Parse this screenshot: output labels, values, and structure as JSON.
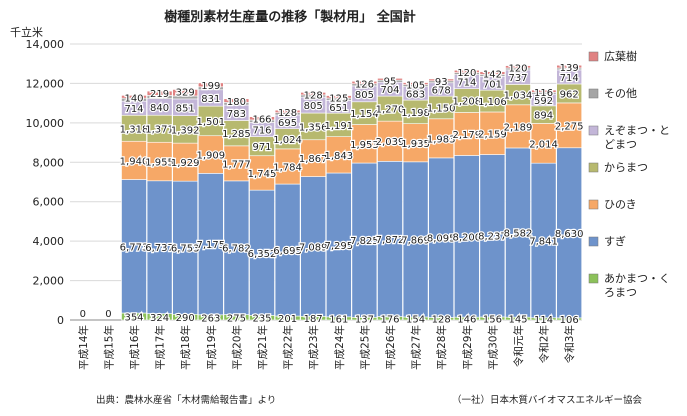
{
  "title": "樹種別素材生産量の推移「製材用」 全国計",
  "unit": "千立米",
  "source_left": "出典：農林水産省「木材需給報告書」より",
  "source_right": "（一社）日本木質バイオマスエネルギー協会",
  "colors": {
    "akamatsu": "#8cc15a",
    "sugi": "#6e93cb",
    "hinoki": "#f6a867",
    "karamatsu": "#b7b96f",
    "ezomatsu": "#c3b6d8",
    "sonota": "#a5a5a5",
    "koyoju": "#e08282"
  },
  "chart_data": {
    "type": "bar",
    "stacked": true,
    "ylim": [
      0,
      14000
    ],
    "yticks": [
      "0",
      "2,000",
      "4,000",
      "6,000",
      "8,000",
      "10,000",
      "12,000",
      "14,000"
    ],
    "categories": [
      "平成14年",
      "平成15年",
      "平成16年",
      "平成17年",
      "平成18年",
      "平成19年",
      "平成20年",
      "平成21年",
      "平成22年",
      "平成23年",
      "平成24年",
      "平成25年",
      "平成26年",
      "平成27年",
      "平成28年",
      "平成29年",
      "平成30年",
      "令和元年",
      "令和2年",
      "令和3年"
    ],
    "missing_labels": [
      "0",
      "0"
    ],
    "legend_position": "right",
    "series": [
      {
        "key": "akamatsu",
        "name": "あかまつ・くろまつ",
        "values": [
          null,
          null,
          354,
          324,
          290,
          263,
          275,
          235,
          201,
          187,
          161,
          137,
          176,
          154,
          128,
          146,
          156,
          145,
          114,
          106
        ],
        "labels": [
          "",
          "",
          "354",
          "324",
          "290",
          "263",
          "275",
          "235",
          "201",
          "187",
          "161",
          "137",
          "176",
          "154",
          "128",
          "146",
          "156",
          "145",
          "114",
          "106"
        ]
      },
      {
        "key": "sugi",
        "name": "すぎ",
        "values": [
          null,
          null,
          6773,
          6737,
          6753,
          7175,
          6782,
          6352,
          6695,
          7089,
          7295,
          7825,
          7872,
          7869,
          8095,
          8200,
          8237,
          8582,
          7841,
          8630
        ],
        "labels": [
          "",
          "",
          "6,773",
          "6,737",
          "6,753",
          "7,175",
          "6,782",
          "6,352",
          "6,695",
          "7,089",
          "7,295",
          "7,825",
          "7,872",
          "7,869",
          "8,095",
          "8,200",
          "8,237",
          "8,582",
          "7,841",
          "8,630"
        ]
      },
      {
        "key": "hinoki",
        "name": "ひのき",
        "values": [
          null,
          null,
          1940,
          1955,
          1929,
          1909,
          1777,
          1745,
          1784,
          1867,
          1843,
          1953,
          2039,
          1935,
          1983,
          2179,
          2159,
          2189,
          2014,
          2275
        ],
        "labels": [
          "",
          "",
          "1,940",
          "1,955",
          "1,929",
          "1,909",
          "1,777",
          "1,745",
          "1,784",
          "1,867",
          "1,843",
          "1,953",
          "2,039",
          "1,935",
          "1,983",
          "2,179",
          "2,159",
          "2,189",
          "2,014",
          "2,275"
        ]
      },
      {
        "key": "karamatsu",
        "name": "からまつ",
        "values": [
          null,
          null,
          1318,
          1371,
          1392,
          1501,
          1285,
          971,
          1024,
          1356,
          1191,
          1154,
          1270,
          1198,
          1150,
          1208,
          1106,
          1034,
          894,
          962
        ],
        "labels": [
          "",
          "",
          "1,318",
          "1,371",
          "1,392",
          "1,501",
          "1,285",
          "971",
          "1,024",
          "1,356",
          "1,191",
          "1,154",
          "1,270",
          "1,198",
          "1,150",
          "1,208",
          "1,106",
          "1,034",
          "894",
          "962"
        ]
      },
      {
        "key": "ezomatsu",
        "name": "えぞまつ・とどまつ",
        "values": [
          null,
          null,
          714,
          840,
          851,
          831,
          783,
          716,
          695,
          805,
          651,
          805,
          704,
          683,
          678,
          714,
          701,
          737,
          592,
          714
        ],
        "labels": [
          "",
          "",
          "714",
          "840",
          "851",
          "831",
          "783",
          "716",
          "695",
          "805",
          "651",
          "805",
          "704",
          "683",
          "678",
          "714",
          "701",
          "737",
          "592",
          "714"
        ]
      },
      {
        "key": "sonota",
        "name": "その他",
        "values": [
          null,
          null,
          155,
          165,
          150,
          150,
          140,
          128,
          118,
          114,
          118,
          110,
          104,
          100,
          100,
          102,
          97,
          96,
          94,
          98
        ],
        "labels": [
          "",
          "",
          "",
          "",
          "",
          "",
          "",
          "",
          "",
          "",
          "",
          "",
          "",
          "",
          "",
          "",
          "",
          "",
          "",
          ""
        ]
      },
      {
        "key": "koyoju",
        "name": "広葉樹",
        "values": [
          null,
          null,
          140,
          219,
          329,
          199,
          180,
          166,
          128,
          128,
          125,
          126,
          95,
          105,
          93,
          120,
          142,
          120,
          116,
          139
        ],
        "labels": [
          "",
          "",
          "140",
          "219",
          "329",
          "199",
          "180",
          "166",
          "128",
          "128",
          "125",
          "126",
          "95",
          "105",
          "93",
          "120",
          "142",
          "120",
          "116",
          "139"
        ]
      }
    ]
  }
}
